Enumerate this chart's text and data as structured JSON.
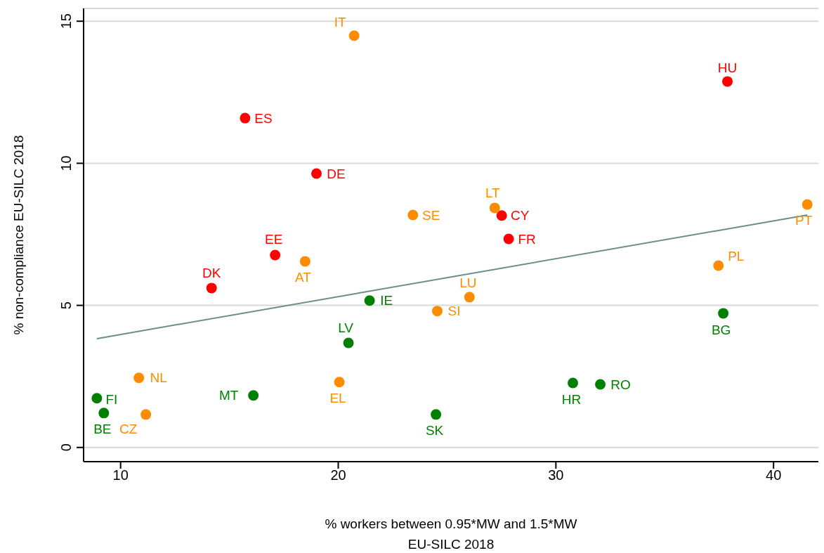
{
  "chart_data": {
    "type": "scatter",
    "xlabel": "% workers between 0.95*MW and 1.5*MW\nEU-SILC 2018",
    "ylabel": "% non-compliance EU-SILC 2018",
    "xlim": [
      8.3,
      42.06
    ],
    "xticks": [
      10,
      20,
      30,
      40
    ],
    "ylim": [
      -0.5,
      15.45
    ],
    "yticks": [
      0,
      5,
      10,
      15
    ],
    "grid": "y",
    "legend": false,
    "marker": "circle",
    "series": [
      {
        "color": "#ff0000",
        "x": [
          37.88,
          15.72,
          19.0,
          27.51,
          27.83,
          17.1,
          14.18
        ],
        "values": [
          12.88,
          11.59,
          9.64,
          8.16,
          7.34,
          6.77,
          5.61
        ]
      },
      {
        "color": "#ff8c00",
        "x": [
          20.73,
          27.19,
          23.43,
          41.55,
          18.48,
          37.47,
          26.03,
          24.55,
          10.84,
          20.05,
          11.16
        ],
        "values": [
          14.49,
          8.43,
          8.18,
          8.55,
          6.55,
          6.4,
          5.29,
          4.8,
          2.45,
          2.3,
          1.16
        ]
      },
      {
        "color": "#008000",
        "x": [
          21.44,
          37.69,
          20.47,
          16.1,
          30.78,
          32.04,
          8.91,
          9.23,
          24.49
        ],
        "values": [
          5.17,
          4.72,
          3.68,
          1.83,
          2.27,
          2.22,
          1.73,
          1.21,
          1.16
        ]
      },
      {
        "type": "line",
        "color": "#6b8e86",
        "marker": "none",
        "x": [
          8.91,
          41.55
        ],
        "values": [
          3.83,
          8.18
        ]
      }
    ],
    "annotations": [
      {
        "text": "IT",
        "x": 20.73,
        "y": 14.49
      },
      {
        "text": "HU",
        "x": 37.88,
        "y": 12.88
      },
      {
        "text": "ES",
        "x": 15.72,
        "y": 11.59
      },
      {
        "text": "DE",
        "x": 19.0,
        "y": 9.64
      },
      {
        "text": "LT",
        "x": 27.19,
        "y": 8.43
      },
      {
        "text": "CY",
        "x": 27.51,
        "y": 8.16
      },
      {
        "text": "SE",
        "x": 23.43,
        "y": 8.18
      },
      {
        "text": "PT",
        "x": 41.55,
        "y": 8.55
      },
      {
        "text": "FR",
        "x": 27.83,
        "y": 7.34
      },
      {
        "text": "EE",
        "x": 17.1,
        "y": 6.77
      },
      {
        "text": "AT",
        "x": 18.48,
        "y": 6.55
      },
      {
        "text": "DK",
        "x": 14.18,
        "y": 5.61
      },
      {
        "text": "PL",
        "x": 37.47,
        "y": 6.4
      },
      {
        "text": "LU",
        "x": 26.03,
        "y": 5.29
      },
      {
        "text": "IE",
        "x": 21.44,
        "y": 5.17
      },
      {
        "text": "SI",
        "x": 24.55,
        "y": 4.8
      },
      {
        "text": "BG",
        "x": 37.69,
        "y": 4.72
      },
      {
        "text": "LV",
        "x": 20.47,
        "y": 3.68
      },
      {
        "text": "NL",
        "x": 10.84,
        "y": 2.45
      },
      {
        "text": "EL",
        "x": 20.05,
        "y": 2.3
      },
      {
        "text": "MT",
        "x": 16.1,
        "y": 1.83
      },
      {
        "text": "HR",
        "x": 30.78,
        "y": 2.27
      },
      {
        "text": "RO",
        "x": 32.04,
        "y": 2.22
      },
      {
        "text": "FI",
        "x": 8.91,
        "y": 1.73
      },
      {
        "text": "BE",
        "x": 9.23,
        "y": 1.21
      },
      {
        "text": "CZ",
        "x": 11.16,
        "y": 1.16
      },
      {
        "text": "SK",
        "x": 24.49,
        "y": 1.16
      }
    ]
  }
}
